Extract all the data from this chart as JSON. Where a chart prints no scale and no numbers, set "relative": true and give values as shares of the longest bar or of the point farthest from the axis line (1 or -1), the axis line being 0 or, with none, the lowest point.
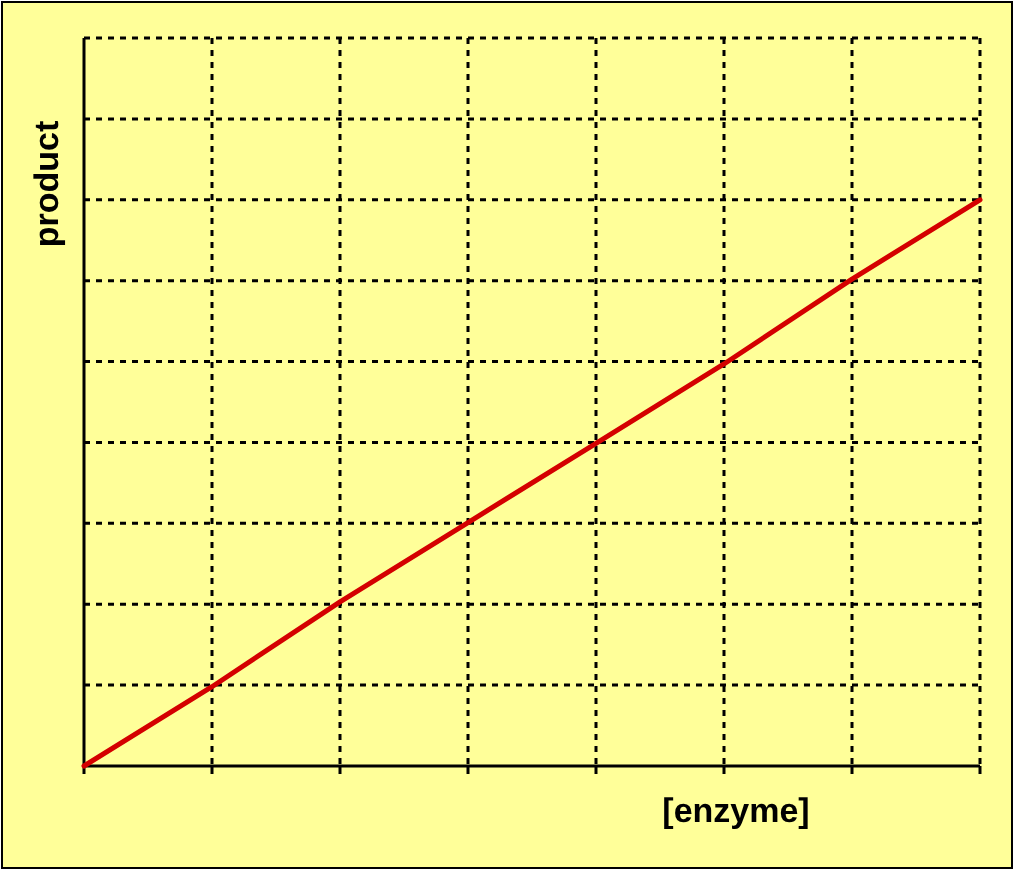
{
  "chart_data": {
    "type": "line",
    "xlabel": "[enzyme]",
    "ylabel": "product",
    "relative": true,
    "grid": true,
    "categories": [
      null,
      null,
      null,
      null,
      null,
      null,
      null,
      null
    ],
    "series": [
      {
        "color": "#d40000",
        "values": [
          0,
          0.14,
          0.29,
          0.43,
          0.57,
          0.71,
          0.86,
          1
        ]
      }
    ],
    "marker": "none",
    "line_style": "solid"
  }
}
